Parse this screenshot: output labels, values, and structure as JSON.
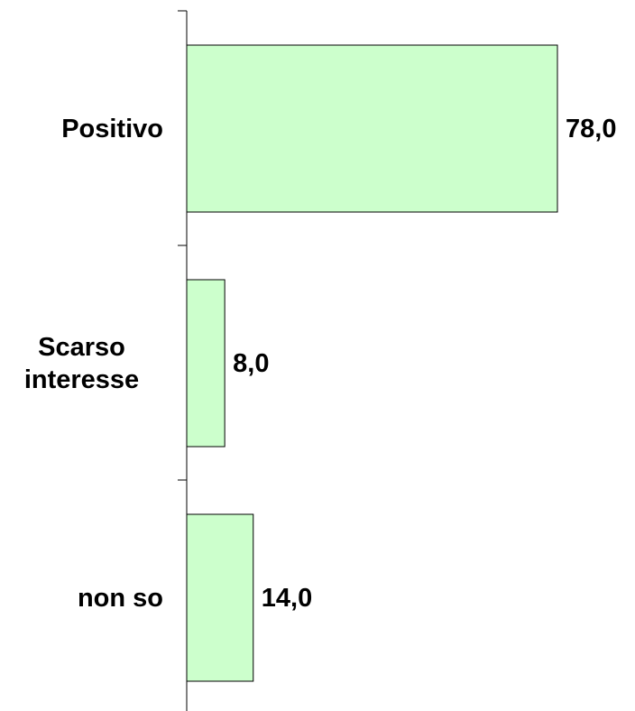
{
  "chart_data": {
    "type": "bar",
    "orientation": "horizontal",
    "categories": [
      "Positivo",
      "Scarso interesse",
      "non so"
    ],
    "values": [
      78,
      8,
      14
    ],
    "value_labels": [
      "78,0",
      "8,0",
      "14,0"
    ],
    "color": "#ccffcc"
  }
}
